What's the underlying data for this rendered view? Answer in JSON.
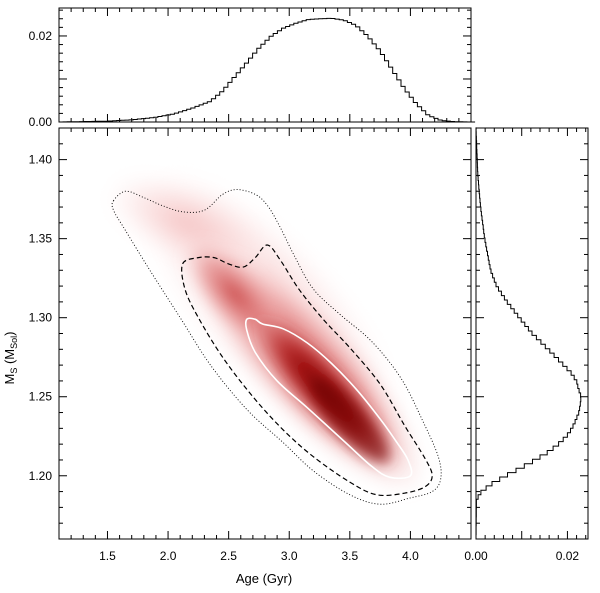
{
  "chart_data": [
    {
      "type": "heatmap",
      "panel": "joint",
      "xlabel": "Age  (Gyr)",
      "ylabel_main": "M",
      "ylabel_sub": "S",
      "ylabel_unit_main": " (M",
      "ylabel_unit_sub": "Sol",
      "ylabel_unit_close": ")",
      "xlim": [
        1.1,
        4.5
      ],
      "ylim": [
        1.16,
        1.42
      ],
      "xticks": [
        {
          "value": 1.5,
          "label": "1.5"
        },
        {
          "value": 2.0,
          "label": "2.0"
        },
        {
          "value": 2.5,
          "label": "2.5"
        },
        {
          "value": 3.0,
          "label": "3.0"
        },
        {
          "value": 3.5,
          "label": "3.5"
        },
        {
          "value": 4.0,
          "label": "4.0"
        }
      ],
      "yticks": [
        {
          "value": 1.2,
          "label": "1.20"
        },
        {
          "value": 1.25,
          "label": "1.25"
        },
        {
          "value": 1.3,
          "label": "1.30"
        },
        {
          "value": 1.35,
          "label": "1.35"
        },
        {
          "value": 1.4,
          "label": "1.40"
        }
      ],
      "colormap": [
        "#ffffff",
        "#f2b5b5",
        "#d24a4a",
        "#800000"
      ],
      "density_peak": {
        "x": 3.35,
        "y": 1.245
      },
      "contours": [
        {
          "level": "inner",
          "style": "solid",
          "color": "#ffffff",
          "points": [
            [
              2.65,
              1.299
            ],
            [
              2.72,
              1.299
            ],
            [
              2.78,
              1.296
            ],
            [
              2.95,
              1.293
            ],
            [
              3.15,
              1.284
            ],
            [
              3.35,
              1.271
            ],
            [
              3.55,
              1.255
            ],
            [
              3.75,
              1.236
            ],
            [
              3.88,
              1.222
            ],
            [
              3.98,
              1.21
            ],
            [
              4.0,
              1.2
            ],
            [
              3.83,
              1.199
            ],
            [
              3.68,
              1.206
            ],
            [
              3.45,
              1.222
            ],
            [
              3.15,
              1.243
            ],
            [
              2.9,
              1.26
            ],
            [
              2.72,
              1.278
            ],
            [
              2.65,
              1.292
            ],
            [
              2.65,
              1.299
            ]
          ]
        },
        {
          "level": "middle",
          "style": "dashed",
          "color": "#000000",
          "points": [
            [
              2.12,
              1.334
            ],
            [
              2.25,
              1.338
            ],
            [
              2.38,
              1.338
            ],
            [
              2.5,
              1.334
            ],
            [
              2.62,
              1.332
            ],
            [
              2.72,
              1.338
            ],
            [
              2.82,
              1.346
            ],
            [
              2.93,
              1.336
            ],
            [
              3.08,
              1.318
            ],
            [
              3.28,
              1.299
            ],
            [
              3.5,
              1.281
            ],
            [
              3.75,
              1.258
            ],
            [
              3.95,
              1.232
            ],
            [
              4.12,
              1.211
            ],
            [
              4.18,
              1.2
            ],
            [
              4.12,
              1.193
            ],
            [
              3.95,
              1.189
            ],
            [
              3.72,
              1.188
            ],
            [
              3.5,
              1.196
            ],
            [
              3.2,
              1.212
            ],
            [
              2.95,
              1.229
            ],
            [
              2.7,
              1.25
            ],
            [
              2.45,
              1.275
            ],
            [
              2.25,
              1.3
            ],
            [
              2.14,
              1.318
            ],
            [
              2.12,
              1.334
            ]
          ]
        },
        {
          "level": "outer",
          "style": "dotted",
          "color": "#000000",
          "points": [
            [
              1.55,
              1.374
            ],
            [
              1.65,
              1.38
            ],
            [
              1.8,
              1.376
            ],
            [
              1.95,
              1.371
            ],
            [
              2.12,
              1.367
            ],
            [
              2.3,
              1.368
            ],
            [
              2.45,
              1.378
            ],
            [
              2.57,
              1.381
            ],
            [
              2.72,
              1.378
            ],
            [
              2.82,
              1.371
            ],
            [
              2.92,
              1.358
            ],
            [
              3.05,
              1.338
            ],
            [
              3.2,
              1.318
            ],
            [
              3.42,
              1.302
            ],
            [
              3.68,
              1.285
            ],
            [
              3.92,
              1.262
            ],
            [
              4.1,
              1.235
            ],
            [
              4.23,
              1.212
            ],
            [
              4.25,
              1.198
            ],
            [
              4.18,
              1.19
            ],
            [
              4.0,
              1.186
            ],
            [
              3.75,
              1.182
            ],
            [
              3.5,
              1.188
            ],
            [
              3.2,
              1.203
            ],
            [
              2.95,
              1.221
            ],
            [
              2.65,
              1.242
            ],
            [
              2.35,
              1.27
            ],
            [
              2.1,
              1.3
            ],
            [
              1.85,
              1.33
            ],
            [
              1.65,
              1.355
            ],
            [
              1.55,
              1.368
            ],
            [
              1.55,
              1.374
            ]
          ]
        }
      ]
    },
    {
      "type": "line",
      "panel": "top-marginal",
      "description_axis": "Age",
      "ylim": [
        0,
        0.0265
      ],
      "yticks": [
        {
          "value": 0.0,
          "label": "0.00"
        },
        {
          "value": 0.02,
          "label": "0.02"
        }
      ],
      "x": [
        1.1,
        1.3,
        1.5,
        1.7,
        1.9,
        2.05,
        2.2,
        2.35,
        2.45,
        2.55,
        2.65,
        2.75,
        2.85,
        2.95,
        3.05,
        3.15,
        3.25,
        3.35,
        3.45,
        3.55,
        3.65,
        3.75,
        3.85,
        3.95,
        4.05,
        4.15,
        4.25,
        4.35,
        4.5
      ],
      "y": [
        0.0,
        0.0001,
        0.0002,
        0.0005,
        0.0011,
        0.0019,
        0.0032,
        0.0048,
        0.0072,
        0.0105,
        0.0138,
        0.0172,
        0.0199,
        0.0218,
        0.0229,
        0.0238,
        0.024,
        0.0241,
        0.0237,
        0.0225,
        0.0199,
        0.0165,
        0.0122,
        0.0078,
        0.0042,
        0.0015,
        0.0004,
        0.0001,
        0.0
      ]
    },
    {
      "type": "line",
      "panel": "right-marginal",
      "description_axis": "Mass",
      "xlim": [
        0,
        0.0245
      ],
      "xticks": [
        {
          "value": 0.0,
          "label": "0.00"
        },
        {
          "value": 0.02,
          "label": "0.02"
        }
      ],
      "y": [
        1.16,
        1.185,
        1.19,
        1.195,
        1.2,
        1.205,
        1.21,
        1.215,
        1.22,
        1.225,
        1.23,
        1.235,
        1.24,
        1.245,
        1.25,
        1.255,
        1.26,
        1.265,
        1.27,
        1.275,
        1.28,
        1.29,
        1.3,
        1.31,
        1.32,
        1.33,
        1.35,
        1.37,
        1.39,
        1.42
      ],
      "density": [
        0.0,
        0.0001,
        0.0012,
        0.0035,
        0.0065,
        0.0098,
        0.013,
        0.0158,
        0.018,
        0.0198,
        0.021,
        0.0218,
        0.0225,
        0.0228,
        0.023,
        0.0224,
        0.022,
        0.0208,
        0.0192,
        0.0175,
        0.0158,
        0.0123,
        0.0095,
        0.0068,
        0.0045,
        0.0032,
        0.0019,
        0.001,
        0.0004,
        0.0
      ]
    }
  ]
}
